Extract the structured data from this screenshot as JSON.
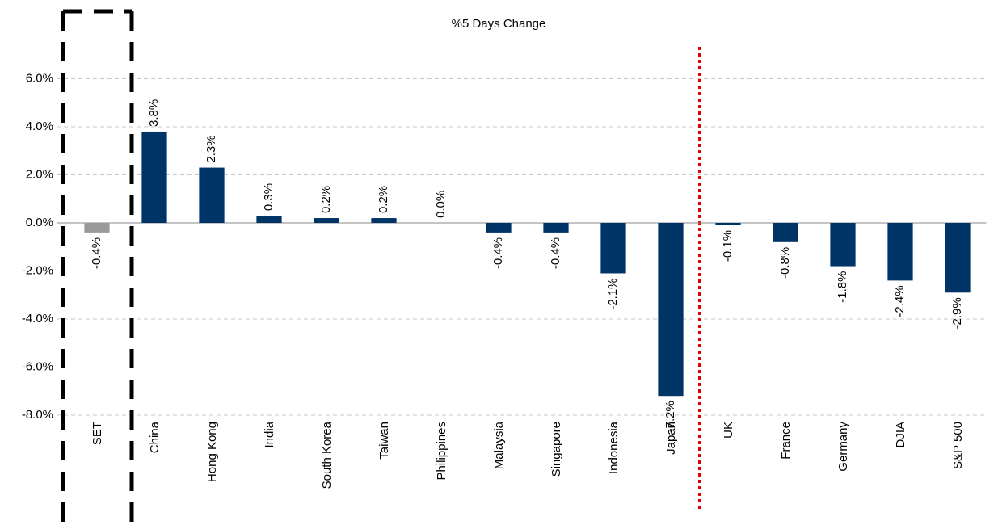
{
  "chart_data": {
    "type": "bar",
    "title": "%5 Days Change",
    "categories": [
      "SET",
      "China",
      "Hong Kong",
      "India",
      "South Korea",
      "Taiwan",
      "Philippines",
      "Malaysia",
      "Singapore",
      "Indonesia",
      "Japan",
      "UK",
      "France",
      "Germany",
      "DJIA",
      "S&P 500"
    ],
    "values": [
      -0.4,
      3.8,
      2.3,
      0.3,
      0.2,
      0.2,
      0.0,
      -0.4,
      -0.4,
      -2.1,
      -7.2,
      -0.1,
      -0.8,
      -1.8,
      -2.4,
      -2.9
    ],
    "value_labels": [
      "-0.4%",
      "3.8%",
      "2.3%",
      "0.3%",
      "0.2%",
      "0.2%",
      "0.0%",
      "-0.4%",
      "-0.4%",
      "-2.1%",
      "-7.2%",
      "-0.1%",
      "-0.8%",
      "-1.8%",
      "-2.4%",
      "-2.9%"
    ],
    "colors": [
      "#9a9a9a",
      "#003366",
      "#003366",
      "#003366",
      "#003366",
      "#003366",
      "#003366",
      "#003366",
      "#003366",
      "#003366",
      "#003366",
      "#003366",
      "#003366",
      "#003366",
      "#003366",
      "#003366"
    ],
    "ylim": [
      -8,
      8
    ],
    "yticks": [
      {
        "value": -8,
        "label": "-8.0%"
      },
      {
        "value": -6,
        "label": "-6.0%"
      },
      {
        "value": -4,
        "label": "-4.0%"
      },
      {
        "value": -2,
        "label": "-2.0%"
      },
      {
        "value": 0,
        "label": "0.0%"
      },
      {
        "value": 2,
        "label": "2.0%"
      },
      {
        "value": 4,
        "label": "4.0%"
      },
      {
        "value": 6,
        "label": "6.0%"
      }
    ],
    "grid": true
  }
}
